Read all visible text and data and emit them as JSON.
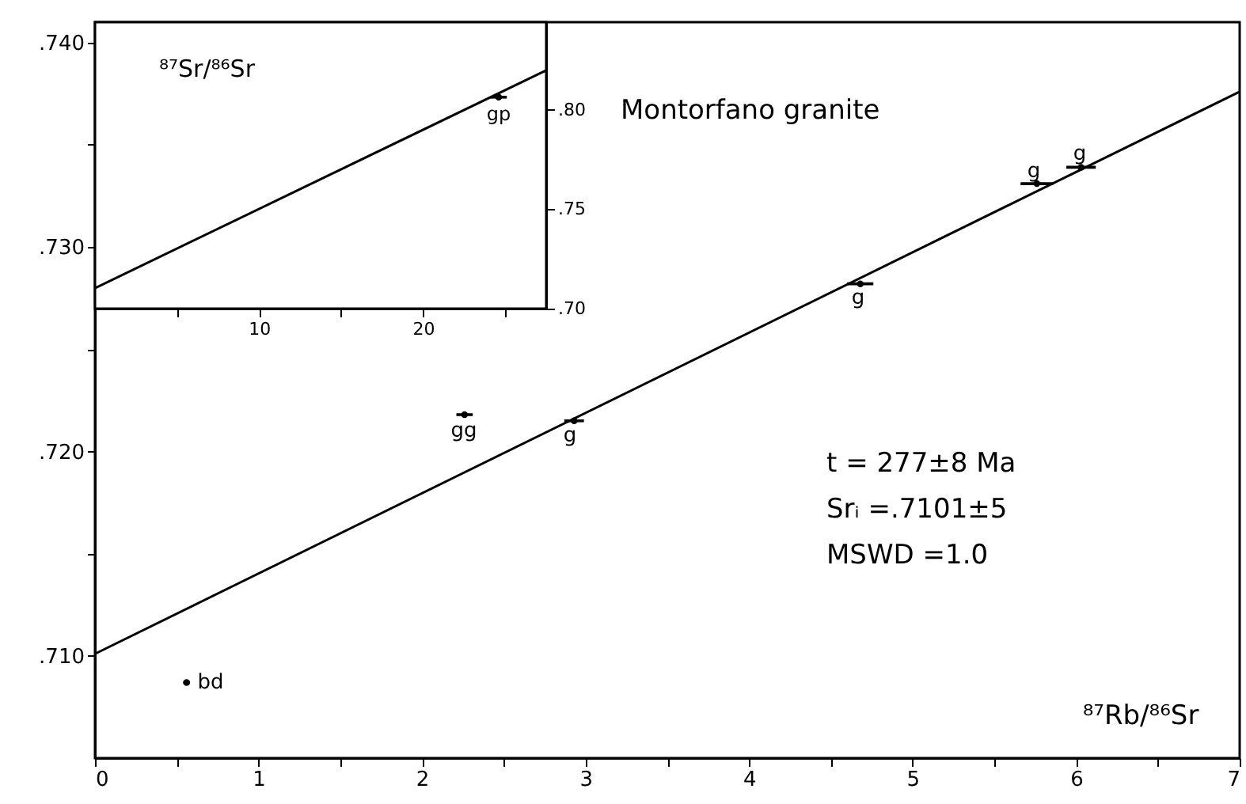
{
  "chart_data": [
    {
      "type": "scatter",
      "title": "Montorfano granite",
      "xlabel": "⁸⁷Rb/⁸⁶Sr",
      "xlim": [
        0,
        7
      ],
      "ylim": [
        0.705,
        0.741
      ],
      "xticks": [
        0,
        {
          "value": 0.5,
          "label": null
        },
        1,
        {
          "value": 1.5,
          "label": null
        },
        2,
        {
          "value": 2.5,
          "label": null
        },
        3,
        {
          "value": 3.5,
          "label": null
        },
        4,
        {
          "value": 4.5,
          "label": null
        },
        5,
        {
          "value": 5.5,
          "label": null
        },
        6,
        {
          "value": 6.5,
          "label": null
        },
        7
      ],
      "yticks": [
        {
          "value": 0.71,
          "label": ".710"
        },
        {
          "value": 0.715,
          "label": null
        },
        {
          "value": 0.72,
          "label": ".720"
        },
        {
          "value": 0.725,
          "label": null
        },
        {
          "value": 0.73,
          "label": ".730"
        },
        {
          "value": 0.735,
          "label": null
        },
        {
          "value": 0.74,
          "label": ".740"
        }
      ],
      "grid": false,
      "series": [
        {
          "type": "line",
          "color": "#000000",
          "x": [
            0,
            7
          ],
          "values": [
            0.7101,
            0.7376
          ]
        },
        {
          "type": "scatter",
          "color": "#000000",
          "x": [
            0.56,
            2.26,
            2.93,
            4.68,
            5.76,
            6.03
          ],
          "values": [
            0.7087,
            0.7218,
            0.7215,
            0.7282,
            0.7331,
            0.7339
          ],
          "xerrors": [
            0.02,
            0.05,
            0.06,
            0.08,
            0.1,
            0.09
          ]
        }
      ],
      "annotations": [
        "bd",
        "gg",
        "g",
        "g",
        "g",
        "g",
        "t = 277±8 Ma",
        "Srᵢ =.7101±5",
        "MSWD =1.0"
      ]
    },
    {
      "type": "scatter",
      "ylabel": "⁸⁷Sr/⁸⁶Sr",
      "xlim": [
        0,
        27.5
      ],
      "ylim": [
        0.7,
        0.844
      ],
      "xticks": [
        {
          "value": 5,
          "label": null
        },
        10,
        {
          "value": 15,
          "label": null
        },
        20,
        {
          "value": 25,
          "label": null
        }
      ],
      "yticks": [
        {
          "value": 0.7,
          "label": ".70"
        },
        {
          "value": 0.75,
          "label": ".75"
        },
        {
          "value": 0.8,
          "label": ".80"
        }
      ],
      "grid": false,
      "series": [
        {
          "type": "line",
          "color": "#000000",
          "x": [
            0,
            27.5
          ],
          "values": [
            0.7103,
            0.8198
          ]
        },
        {
          "type": "scatter",
          "color": "#000000",
          "x": [
            24.6
          ],
          "values": [
            0.8063
          ],
          "xerrors": [
            0.5
          ]
        }
      ],
      "annotations": [
        "gp"
      ]
    }
  ]
}
